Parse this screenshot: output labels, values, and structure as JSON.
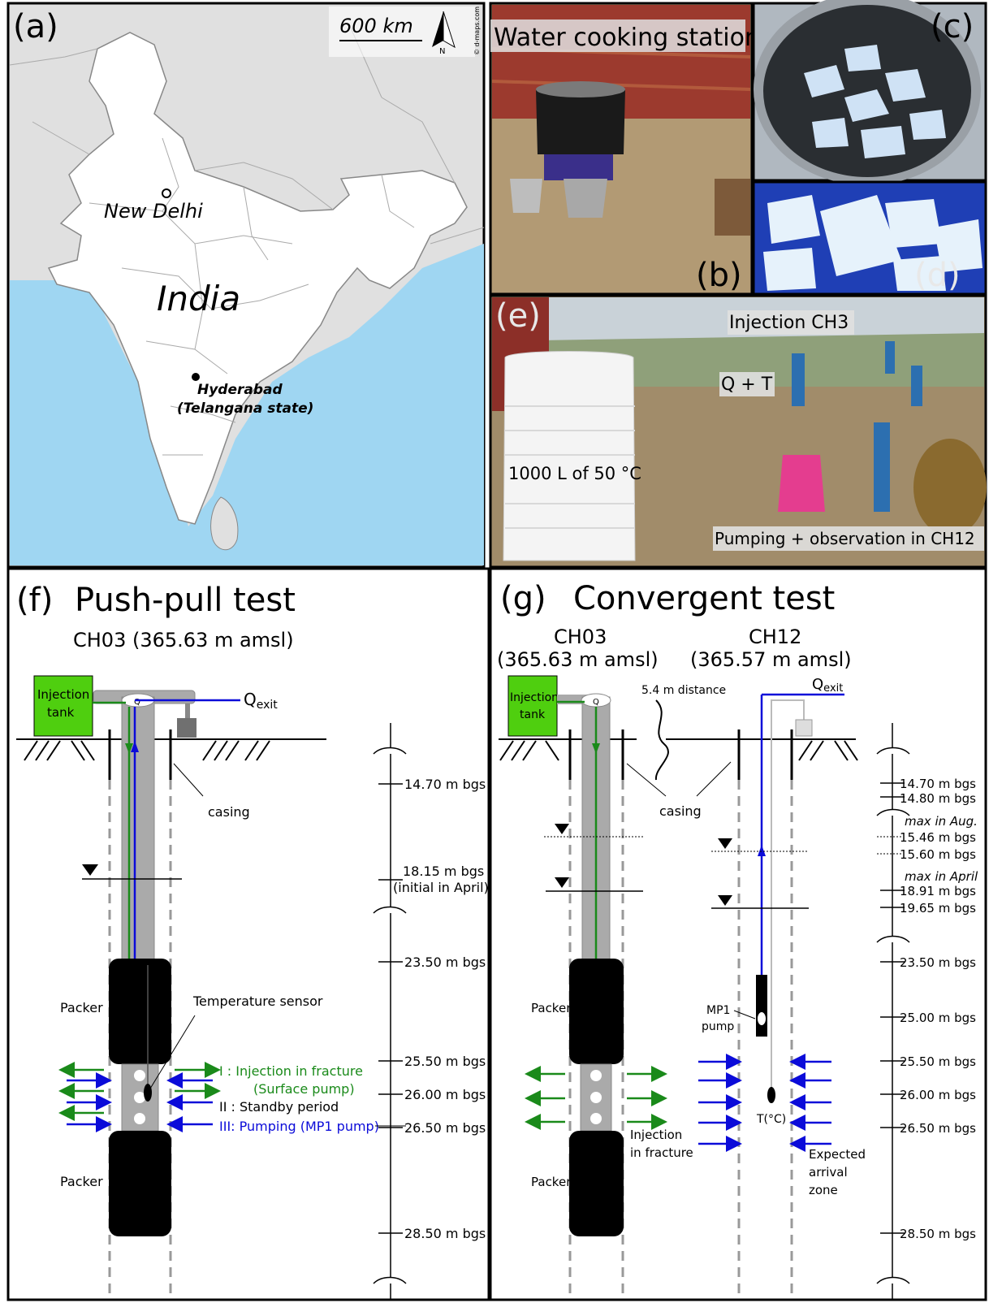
{
  "panels": {
    "a": {
      "letter": "(a)",
      "scale_label": "600 km",
      "north_label": "N",
      "credit": "© d-maps.com",
      "country": "India",
      "city1": "New Delhi",
      "city2_line1": "Hyderabad",
      "city2_line2": "(Telangana state)"
    },
    "b": {
      "letter": "(b)",
      "caption": "Water cooking station"
    },
    "c": {
      "letter": "(c)"
    },
    "d": {
      "letter": "(d)"
    },
    "e": {
      "letter": "(e)",
      "label_injection": "Injection CH3",
      "label_qt": "Q + T",
      "label_tank": "1000 L of 50 °C",
      "label_pumping": "Pumping + observation in CH12"
    },
    "f": {
      "letter": "(f)",
      "title": "Push-pull test",
      "well": "CH03 (365.63 m amsl)",
      "tank_line1": "Injection",
      "tank_line2": "tank",
      "q": "Q",
      "qexit_main": "Q",
      "qexit_sub": "exit",
      "casing": "casing",
      "packer_top": "Packer",
      "packer_bottom": "Packer",
      "temp_sensor": "Temperature sensor",
      "legend1_line1": "I   : Injection in fracture",
      "legend1_line2": "(Surface pump)",
      "legend2": "II : Standby period",
      "legend3": "III: Pumping (MP1 pump)",
      "depths": [
        "14.70 m bgs",
        "18.15 m bgs",
        "(initial in April)",
        "23.50 m bgs",
        "25.50 m bgs",
        "26.00 m bgs",
        "26.50 m bgs",
        "28.50 m bgs"
      ]
    },
    "g": {
      "letter": "(g)",
      "title": "Convergent test",
      "well1": "CH03",
      "well1_alt": "(365.63 m amsl)",
      "well2": "CH12",
      "well2_alt": "(365.57 m amsl)",
      "tank_line1": "Injection",
      "tank_line2": "tank",
      "q": "Q",
      "distance": "5.4 m distance",
      "qexit_main": "Q",
      "qexit_sub": "exit",
      "casing": "casing",
      "packer_top": "Packer",
      "packer_bottom": "Packer",
      "mp1_line1": "MP1",
      "mp1_line2": "pump",
      "tc": "T(°C)",
      "inj_line1": "Injection",
      "inj_line2": "in fracture",
      "exp_line1": "Expected",
      "exp_line2": "arrival",
      "exp_line3": "zone",
      "depths": [
        "14.70 m bgs",
        "14.80 m bgs",
        "max in Aug.",
        "15.46 m bgs",
        "15.60 m bgs",
        "max in April",
        "18.91 m bgs",
        "19.65 m bgs",
        "23.50 m bgs",
        "25.00 m bgs",
        "25.50 m bgs",
        "26.00 m bgs",
        "26.50 m bgs",
        "28.50 m bgs"
      ]
    }
  },
  "colors": {
    "green": "#1a8a1a",
    "blue": "#0b0bd9",
    "tank": "#4fcf0f",
    "sea": "#9fd6f2",
    "land_other": "#e0e0e0",
    "india": "#ffffff"
  }
}
